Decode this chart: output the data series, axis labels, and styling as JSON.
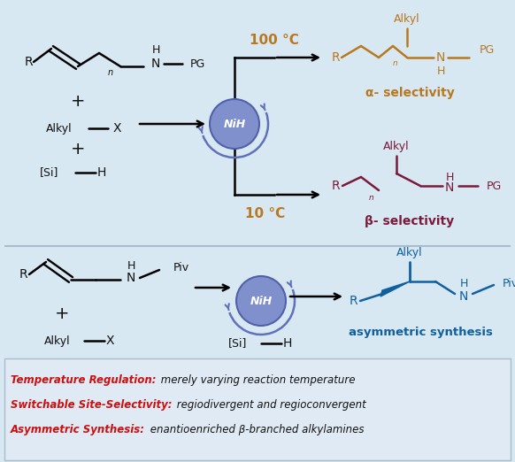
{
  "bg_color": "#d8e8f2",
  "nih_face": "#8090cc",
  "nih_edge": "#5060aa",
  "nih_arc": "#6070bb",
  "temp_color": "#b87820",
  "alpha_color": "#b87820",
  "beta_color": "#7a1a3a",
  "asym_color": "#1060a0",
  "red_color": "#cc1010",
  "black": "#111111",
  "bottom_lines": [
    {
      "bold": "Temperature Regulation:",
      "rest": " merely varying reaction temperature"
    },
    {
      "bold": "Switchable Site-Selectivity:",
      "rest": " regiodivergent and regioconvergent"
    },
    {
      "bold": "Asymmetric Synthesis:",
      "rest": " enantioenriched β-branched alkylamines"
    }
  ]
}
